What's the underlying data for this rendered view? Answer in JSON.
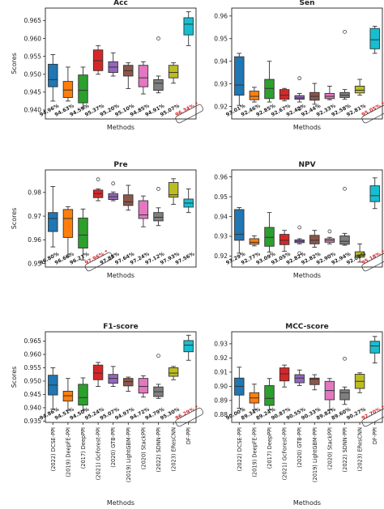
{
  "chart_data": {
    "type": "box",
    "methods": [
      "(2022) DCSE-PPI",
      "(2019) DeepFE-PPI",
      "(2017) DeepPPI",
      "(2021) GcForest-PPI",
      "(2020) GTB-PPI",
      "(2019) LightGBM-PPI",
      "(2020) StackPPI",
      "(2022) SDNN-PPI",
      "(2023) EResCNN",
      "DF-PPI"
    ],
    "colors": [
      "#1f77b4",
      "#ff7f0e",
      "#2ca02c",
      "#d62728",
      "#9467bd",
      "#8c564b",
      "#e377c2",
      "#7f7f7f",
      "#bcbd22",
      "#17becf"
    ],
    "highlight_index": 9,
    "panels": [
      {
        "title": "Acc",
        "ylabel": "Scores",
        "xlabel": "Methods",
        "ylim": [
          0.9375,
          0.9685
        ],
        "yticks": [
          "0.940",
          "0.945",
          "0.950",
          "0.955",
          "0.960",
          "0.965"
        ],
        "labels": [
          "94.96%",
          "94.63%",
          "94.59%",
          "95.37%",
          "95.20%",
          "95.10%",
          "94.85%",
          "94.91%",
          "95.07%",
          "96.34% *"
        ],
        "boxes": [
          {
            "min": 0.9425,
            "q1": 0.9465,
            "med": 0.9485,
            "q3": 0.9528,
            "max": 0.9555,
            "out": []
          },
          {
            "min": 0.9425,
            "q1": 0.9435,
            "med": 0.9456,
            "q3": 0.948,
            "max": 0.952,
            "out": []
          },
          {
            "min": 0.9405,
            "q1": 0.942,
            "med": 0.9455,
            "q3": 0.9498,
            "max": 0.952,
            "out": []
          },
          {
            "min": 0.95,
            "q1": 0.951,
            "med": 0.9538,
            "q3": 0.9568,
            "max": 0.958,
            "out": []
          },
          {
            "min": 0.9495,
            "q1": 0.9505,
            "med": 0.952,
            "q3": 0.9535,
            "max": 0.956,
            "out": []
          },
          {
            "min": 0.946,
            "q1": 0.9495,
            "med": 0.951,
            "q3": 0.9525,
            "max": 0.9532,
            "out": []
          },
          {
            "min": 0.9445,
            "q1": 0.9465,
            "med": 0.949,
            "q3": 0.9525,
            "max": 0.9535,
            "out": []
          },
          {
            "min": 0.9448,
            "q1": 0.9455,
            "med": 0.9475,
            "q3": 0.9485,
            "max": 0.9495,
            "out": [
              0.96
            ]
          },
          {
            "min": 0.9475,
            "q1": 0.949,
            "med": 0.9505,
            "q3": 0.9525,
            "max": 0.9532,
            "out": []
          },
          {
            "min": 0.958,
            "q1": 0.961,
            "med": 0.964,
            "q3": 0.9658,
            "max": 0.9675,
            "out": []
          }
        ]
      },
      {
        "title": "Sen",
        "ylabel": "",
        "xlabel": "Methods",
        "ylim": [
          0.9145,
          0.9635
        ],
        "yticks": [
          "0.92",
          "0.93",
          "0.94",
          "0.95",
          "0.96"
        ],
        "labels": [
          "93.01%",
          "92.46%",
          "92.85%",
          "92.67%",
          "92.42%",
          "92.44%",
          "92.33%",
          "92.58%",
          "92.81%",
          "95.05% *"
        ],
        "boxes": [
          {
            "min": 0.9205,
            "q1": 0.925,
            "med": 0.9295,
            "q3": 0.942,
            "max": 0.9435,
            "out": []
          },
          {
            "min": 0.922,
            "q1": 0.923,
            "med": 0.9245,
            "q3": 0.9268,
            "max": 0.9285,
            "out": []
          },
          {
            "min": 0.922,
            "q1": 0.9235,
            "med": 0.928,
            "q3": 0.932,
            "max": 0.94,
            "out": []
          },
          {
            "min": 0.9225,
            "q1": 0.9232,
            "med": 0.925,
            "q3": 0.9275,
            "max": 0.928,
            "out": []
          },
          {
            "min": 0.922,
            "q1": 0.9232,
            "med": 0.9238,
            "q3": 0.9248,
            "max": 0.9258,
            "out": [
              0.9325,
              0.919
            ]
          },
          {
            "min": 0.921,
            "q1": 0.9228,
            "med": 0.9245,
            "q3": 0.9262,
            "max": 0.9302,
            "out": []
          },
          {
            "min": 0.923,
            "q1": 0.9235,
            "med": 0.9245,
            "q3": 0.9258,
            "max": 0.929,
            "out": []
          },
          {
            "min": 0.9232,
            "q1": 0.924,
            "med": 0.925,
            "q3": 0.9262,
            "max": 0.9275,
            "out": [
              0.953
            ]
          },
          {
            "min": 0.925,
            "q1": 0.926,
            "med": 0.9272,
            "q3": 0.929,
            "max": 0.932,
            "out": []
          },
          {
            "min": 0.9435,
            "q1": 0.9455,
            "med": 0.9495,
            "q3": 0.9545,
            "max": 0.9555,
            "out": []
          }
        ]
      },
      {
        "title": "Pre",
        "ylabel": "Scores",
        "xlabel": "Methods",
        "ylim": [
          0.9485,
          0.9895
        ],
        "yticks": [
          "0.95",
          "0.96",
          "0.97",
          "0.98"
        ],
        "labels": [
          "96.80%",
          "96.66%",
          "96.21%",
          "97.96% *",
          "97.88%",
          "97.64%",
          "97.24%",
          "97.12%",
          "97.93%",
          "97.56%"
        ],
        "boxes": [
          {
            "min": 0.957,
            "q1": 0.9635,
            "med": 0.969,
            "q3": 0.9715,
            "max": 0.9825,
            "out": []
          },
          {
            "min": 0.953,
            "q1": 0.961,
            "med": 0.969,
            "q3": 0.9728,
            "max": 0.974,
            "out": []
          },
          {
            "min": 0.9515,
            "q1": 0.9565,
            "med": 0.962,
            "q3": 0.9692,
            "max": 0.973,
            "out": []
          },
          {
            "min": 0.9765,
            "q1": 0.9778,
            "med": 0.9795,
            "q3": 0.981,
            "max": 0.9815,
            "out": [
              0.9855
            ]
          },
          {
            "min": 0.9765,
            "q1": 0.977,
            "med": 0.9782,
            "q3": 0.9795,
            "max": 0.9802,
            "out": [
              0.9838
            ]
          },
          {
            "min": 0.9725,
            "q1": 0.9745,
            "med": 0.976,
            "q3": 0.979,
            "max": 0.983,
            "out": []
          },
          {
            "min": 0.9655,
            "q1": 0.969,
            "med": 0.9705,
            "q3": 0.9765,
            "max": 0.9785,
            "out": []
          },
          {
            "min": 0.966,
            "q1": 0.968,
            "med": 0.9695,
            "q3": 0.9715,
            "max": 0.9735,
            "out": [
              0.9815
            ]
          },
          {
            "min": 0.975,
            "q1": 0.978,
            "med": 0.979,
            "q3": 0.9842,
            "max": 0.9858,
            "out": []
          },
          {
            "min": 0.9715,
            "q1": 0.9738,
            "med": 0.9755,
            "q3": 0.9772,
            "max": 0.9815,
            "out": []
          }
        ]
      },
      {
        "title": "NPV",
        "ylabel": "",
        "xlabel": "Methods",
        "ylim": [
          0.9145,
          0.9635
        ],
        "yticks": [
          "0.92",
          "0.93",
          "0.94",
          "0.95",
          "0.96"
        ],
        "labels": [
          "93.29%",
          "92.77%",
          "93.09%",
          "93.05%",
          "92.82%",
          "92.82%",
          "92.90%",
          "92.94%",
          "92.08%",
          "95.18% *"
        ],
        "boxes": [
          {
            "min": 0.9215,
            "q1": 0.928,
            "med": 0.931,
            "q3": 0.9435,
            "max": 0.9445,
            "out": []
          },
          {
            "min": 0.9252,
            "q1": 0.926,
            "med": 0.927,
            "q3": 0.9288,
            "max": 0.9302,
            "out": []
          },
          {
            "min": 0.922,
            "q1": 0.925,
            "med": 0.9295,
            "q3": 0.9345,
            "max": 0.942,
            "out": []
          },
          {
            "min": 0.9225,
            "q1": 0.9258,
            "med": 0.928,
            "q3": 0.931,
            "max": 0.933,
            "out": []
          },
          {
            "min": 0.9262,
            "q1": 0.9268,
            "med": 0.9275,
            "q3": 0.9282,
            "max": 0.9288,
            "out": [
              0.9345,
              0.9215
            ]
          },
          {
            "min": 0.9245,
            "q1": 0.9262,
            "med": 0.928,
            "q3": 0.9305,
            "max": 0.933,
            "out": []
          },
          {
            "min": 0.9262,
            "q1": 0.927,
            "med": 0.928,
            "q3": 0.9288,
            "max": 0.9295,
            "out": [
              0.9325
            ]
          },
          {
            "min": 0.9255,
            "q1": 0.926,
            "med": 0.9275,
            "q3": 0.9302,
            "max": 0.9315,
            "out": [
              0.954
            ]
          },
          {
            "min": 0.917,
            "q1": 0.9195,
            "med": 0.9205,
            "q3": 0.9222,
            "max": 0.9262,
            "out": []
          },
          {
            "min": 0.944,
            "q1": 0.9475,
            "med": 0.9505,
            "q3": 0.9555,
            "max": 0.9595,
            "out": []
          }
        ]
      },
      {
        "title": "F1-score",
        "ylabel": "Scores",
        "xlabel": "Methods",
        "ylim": [
          0.9345,
          0.9685
        ],
        "yticks": [
          "0.935",
          "0.940",
          "0.945",
          "0.950",
          "0.955",
          "0.960",
          "0.965"
        ],
        "labels": [
          "94.86%",
          "94.51%",
          "94.50%",
          "95.24%",
          "95.07%",
          "94.97%",
          "94.72%",
          "94.79%",
          "95.30%",
          "96.29% *"
        ],
        "boxes": [
          {
            "min": 0.9395,
            "q1": 0.9448,
            "med": 0.9485,
            "q3": 0.9522,
            "max": 0.955,
            "out": []
          },
          {
            "min": 0.939,
            "q1": 0.9425,
            "med": 0.9445,
            "q3": 0.9462,
            "max": 0.951,
            "out": []
          },
          {
            "min": 0.939,
            "q1": 0.941,
            "med": 0.9438,
            "q3": 0.9488,
            "max": 0.9512,
            "out": []
          },
          {
            "min": 0.948,
            "q1": 0.9505,
            "med": 0.953,
            "q3": 0.956,
            "max": 0.957,
            "out": []
          },
          {
            "min": 0.948,
            "q1": 0.9492,
            "med": 0.951,
            "q3": 0.9525,
            "max": 0.9555,
            "out": []
          },
          {
            "min": 0.9462,
            "q1": 0.9482,
            "med": 0.9498,
            "q3": 0.951,
            "max": 0.9515,
            "out": []
          },
          {
            "min": 0.944,
            "q1": 0.9455,
            "med": 0.948,
            "q3": 0.951,
            "max": 0.952,
            "out": []
          },
          {
            "min": 0.9435,
            "q1": 0.9442,
            "med": 0.946,
            "q3": 0.9478,
            "max": 0.9488,
            "out": [
              0.9595
            ]
          },
          {
            "min": 0.9505,
            "q1": 0.9518,
            "med": 0.953,
            "q3": 0.955,
            "max": 0.9555,
            "out": []
          },
          {
            "min": 0.9578,
            "q1": 0.961,
            "med": 0.9635,
            "q3": 0.9652,
            "max": 0.9672,
            "out": []
          }
        ]
      },
      {
        "title": "MCC-score",
        "ylabel": "",
        "xlabel": "Methods",
        "ylim": [
          0.8745,
          0.9385
        ],
        "yticks": [
          "0.88",
          "0.89",
          "0.90",
          "0.91",
          "0.92",
          "0.93"
        ],
        "labels": [
          "90.00%",
          "89.34%",
          "89.24%",
          "90.87%",
          "90.55%",
          "90.33%",
          "89.82%",
          "89.60%",
          "90.27%",
          "92.70% *"
        ],
        "boxes": [
          {
            "min": 0.8845,
            "q1": 0.8938,
            "med": 0.9,
            "q3": 0.9058,
            "max": 0.9135,
            "out": []
          },
          {
            "min": 0.8835,
            "q1": 0.8882,
            "med": 0.8918,
            "q3": 0.8955,
            "max": 0.9015,
            "out": []
          },
          {
            "min": 0.8835,
            "q1": 0.8865,
            "med": 0.8915,
            "q3": 0.9005,
            "max": 0.9055,
            "out": []
          },
          {
            "min": 0.8995,
            "q1": 0.9038,
            "med": 0.9088,
            "q3": 0.913,
            "max": 0.915,
            "out": []
          },
          {
            "min": 0.9005,
            "q1": 0.9025,
            "med": 0.9058,
            "q3": 0.9082,
            "max": 0.9115,
            "out": []
          },
          {
            "min": 0.8975,
            "q1": 0.9012,
            "med": 0.905,
            "q3": 0.9058,
            "max": 0.9082,
            "out": []
          },
          {
            "min": 0.8835,
            "q1": 0.8905,
            "med": 0.897,
            "q3": 0.9035,
            "max": 0.9055,
            "out": []
          },
          {
            "min": 0.8872,
            "q1": 0.8905,
            "med": 0.8955,
            "q3": 0.8975,
            "max": 0.8995,
            "out": [
              0.9195
            ]
          },
          {
            "min": 0.8955,
            "q1": 0.8985,
            "med": 0.9035,
            "q3": 0.9085,
            "max": 0.9095,
            "out": []
          },
          {
            "min": 0.9165,
            "q1": 0.9235,
            "med": 0.9285,
            "q3": 0.9318,
            "max": 0.9352,
            "out": []
          }
        ]
      }
    ]
  }
}
